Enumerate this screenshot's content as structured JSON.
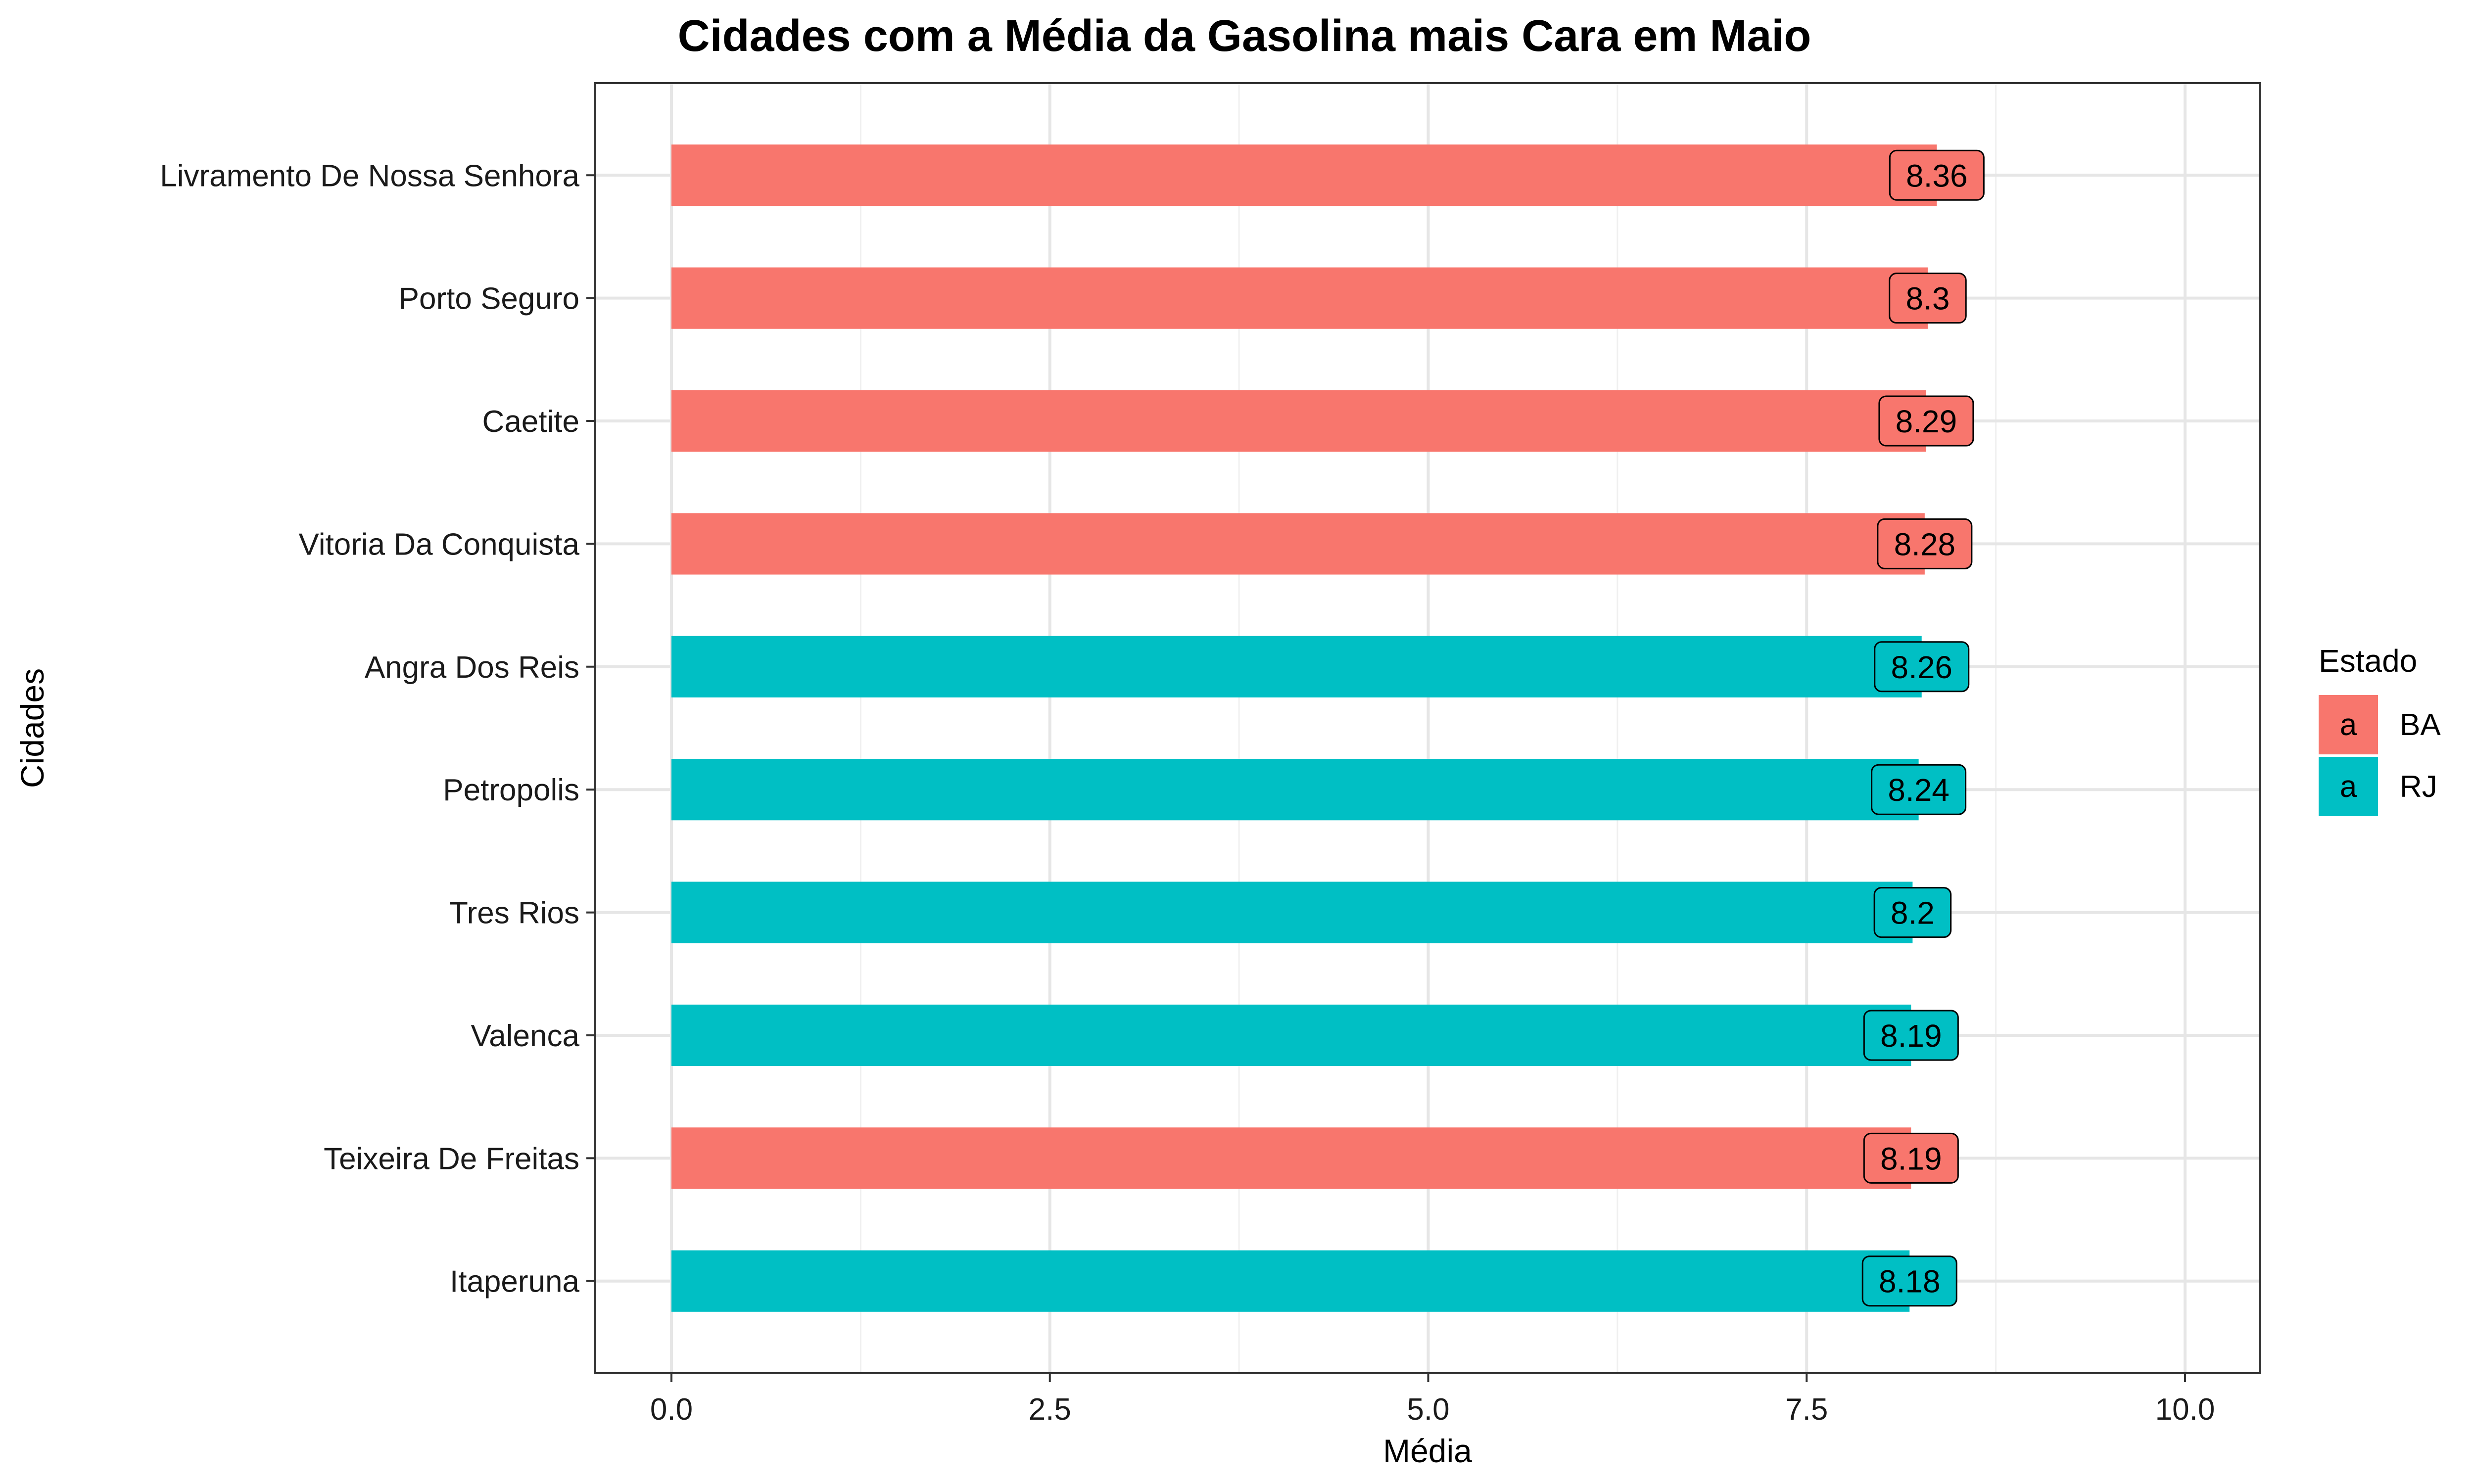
{
  "chart_data": {
    "type": "bar",
    "orientation": "horizontal",
    "title": "Cidades com a Média da Gasolina mais Cara em Maio",
    "xlabel": "Média",
    "ylabel": "Cidades",
    "xlim": [
      0,
      10
    ],
    "x_ticks": [
      "0.0",
      "2.5",
      "5.0",
      "7.5",
      "10.0"
    ],
    "x_tick_values": [
      0,
      2.5,
      5,
      7.5,
      10
    ],
    "grid": true,
    "legend": {
      "title": "Estado",
      "placement": "right",
      "entries": [
        {
          "label": "BA",
          "key_glyph": "a",
          "color": "#F8766D"
        },
        {
          "label": "RJ",
          "key_glyph": "a",
          "color": "#00BFC4"
        }
      ]
    },
    "categories": [
      "Livramento De Nossa Senhora",
      "Porto Seguro",
      "Caetite",
      "Vitoria Da Conquista",
      "Angra Dos Reis",
      "Petropolis",
      "Tres Rios",
      "Valenca",
      "Teixeira De Freitas",
      "Itaperuna"
    ],
    "values": [
      8.36,
      8.3,
      8.29,
      8.28,
      8.26,
      8.24,
      8.2,
      8.19,
      8.19,
      8.18
    ],
    "labels": [
      "8.36",
      "8.3",
      "8.29",
      "8.28",
      "8.26",
      "8.24",
      "8.2",
      "8.19",
      "8.19",
      "8.18"
    ],
    "group": [
      "BA",
      "BA",
      "BA",
      "BA",
      "RJ",
      "RJ",
      "RJ",
      "RJ",
      "BA",
      "RJ"
    ]
  }
}
